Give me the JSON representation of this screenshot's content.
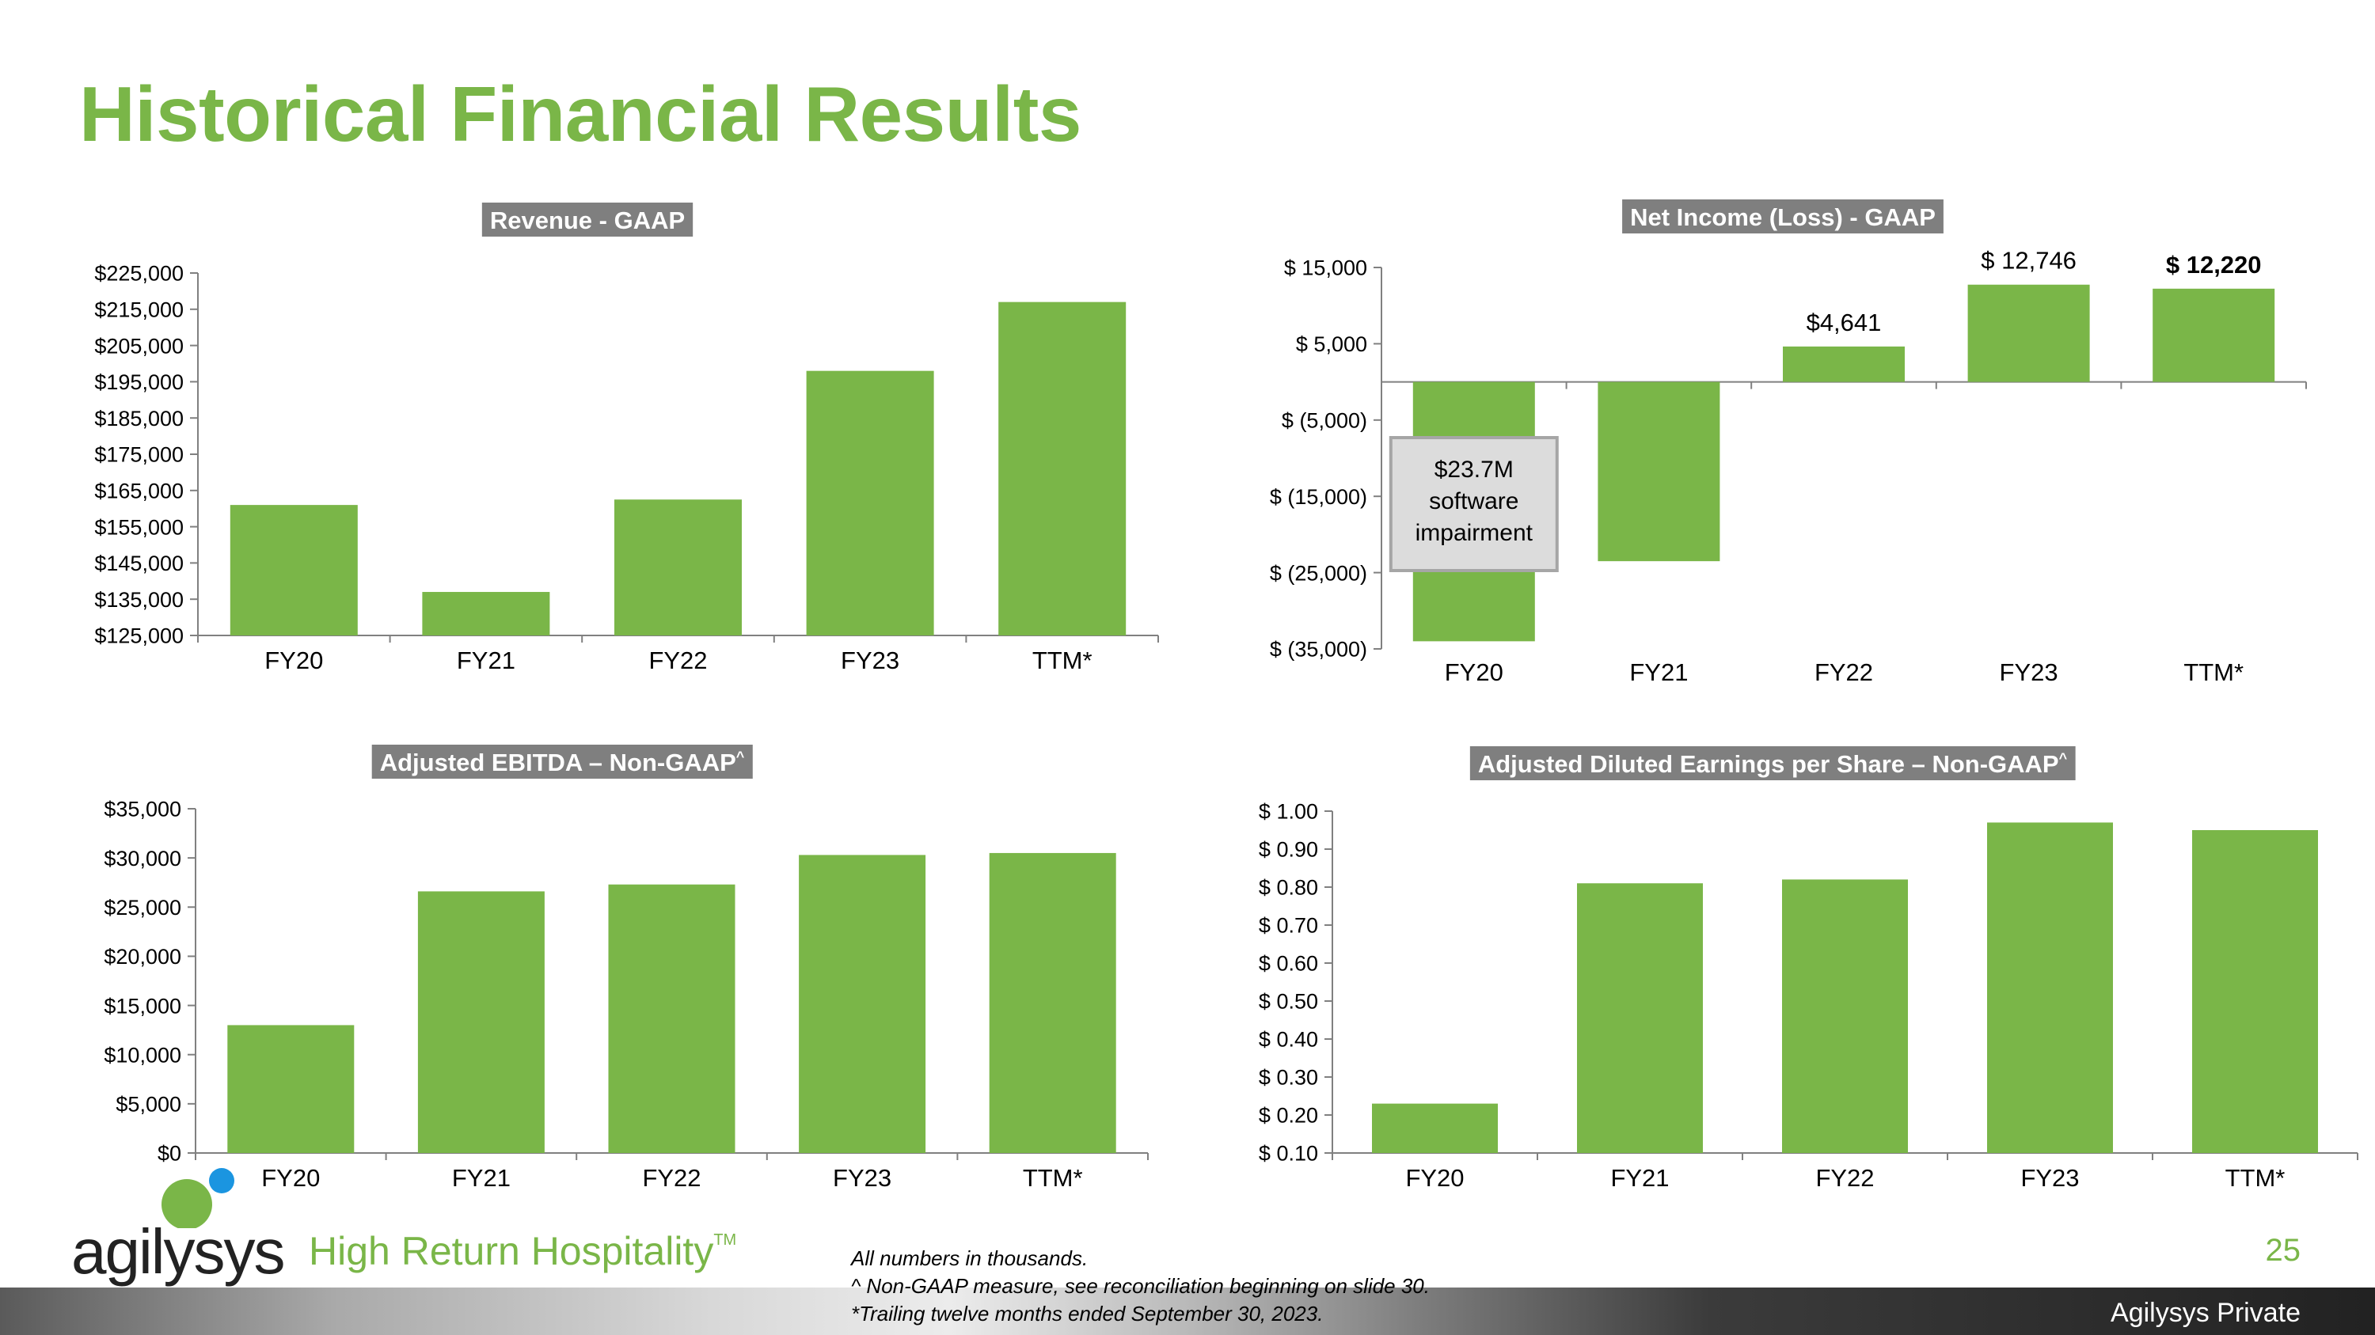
{
  "slide": {
    "title": "Historical Financial Results",
    "page_number": "25",
    "classification": "Agilysys Private",
    "footnotes": [
      "All numbers in thousands.",
      "^ Non-GAAP measure, see reconciliation beginning on slide 30.",
      "*Trailing twelve months ended September 30, 2023."
    ],
    "logo": {
      "wordmark": "agilysys",
      "tagline": "High Return Hospitality",
      "trademark": "TM",
      "dot_colors": [
        "#7ab648",
        "#1b95e0"
      ]
    },
    "colors": {
      "accent": "#7ab648",
      "bar": "#7ab648",
      "title_bg": "#7f7f7f"
    }
  },
  "chart_data": [
    {
      "type": "bar",
      "title": "Revenue - GAAP",
      "categories": [
        "FY20",
        "FY21",
        "FY22",
        "FY23",
        "TTM*"
      ],
      "series": [
        {
          "values": [
            161000,
            137000,
            162500,
            198000,
            217000
          ]
        }
      ],
      "ylim": [
        125000,
        225000
      ],
      "yticks": [
        125000,
        135000,
        145000,
        155000,
        165000,
        175000,
        185000,
        195000,
        205000,
        215000,
        225000
      ],
      "ytick_labels": [
        "$125,000",
        "$135,000",
        "$145,000",
        "$155,000",
        "$165,000",
        "$175,000",
        "$185,000",
        "$195,000",
        "$205,000",
        "$215,000",
        "$225,000"
      ],
      "grid": false,
      "legend": "none"
    },
    {
      "type": "bar",
      "title": "Net Income (Loss) - GAAP",
      "categories": [
        "FY20",
        "FY21",
        "FY22",
        "FY23",
        "TTM*"
      ],
      "series": [
        {
          "values": [
            -34000,
            -23500,
            4641,
            12746,
            12220
          ]
        }
      ],
      "data_labels": [
        "",
        "",
        "$4,641",
        "$ 12,746",
        "$ 12,220"
      ],
      "ylim": [
        -35000,
        15000
      ],
      "yticks": [
        -35000,
        -25000,
        -15000,
        -5000,
        5000,
        15000
      ],
      "ytick_labels": [
        "$ (35,000)",
        "$ (25,000)",
        "$ (15,000)",
        "$ (5,000)",
        "$ 5,000",
        "$ 15,000"
      ],
      "annotation": {
        "category": "FY20",
        "lines": [
          "$23.7M",
          "software",
          "impairment"
        ]
      },
      "grid": false,
      "legend": "none"
    },
    {
      "type": "bar",
      "title": "Adjusted EBITDA – Non-GAAP",
      "title_mark": "^",
      "categories": [
        "FY20",
        "FY21",
        "FY22",
        "FY23",
        "TTM*"
      ],
      "series": [
        {
          "values": [
            13000,
            26600,
            27300,
            30300,
            30500
          ]
        }
      ],
      "ylim": [
        0,
        35000
      ],
      "yticks": [
        0,
        5000,
        10000,
        15000,
        20000,
        25000,
        30000,
        35000
      ],
      "ytick_labels": [
        "$0",
        "$5,000",
        "$10,000",
        "$15,000",
        "$20,000",
        "$25,000",
        "$30,000",
        "$35,000"
      ],
      "grid": false,
      "legend": "none"
    },
    {
      "type": "bar",
      "title": "Adjusted Diluted Earnings per Share – Non-GAAP",
      "title_mark": "^",
      "categories": [
        "FY20",
        "FY21",
        "FY22",
        "FY23",
        "TTM*"
      ],
      "series": [
        {
          "values": [
            0.23,
            0.81,
            0.82,
            0.97,
            0.95
          ]
        }
      ],
      "ylim": [
        0.1,
        1.0
      ],
      "yticks": [
        0.1,
        0.2,
        0.3,
        0.4,
        0.5,
        0.6,
        0.7,
        0.8,
        0.9,
        1.0
      ],
      "ytick_labels": [
        "$ 0.10",
        "$ 0.20",
        "$ 0.30",
        "$ 0.40",
        "$ 0.50",
        "$ 0.60",
        "$ 0.70",
        "$ 0.80",
        "$ 0.90",
        "$ 1.00"
      ],
      "grid": false,
      "legend": "none"
    }
  ]
}
